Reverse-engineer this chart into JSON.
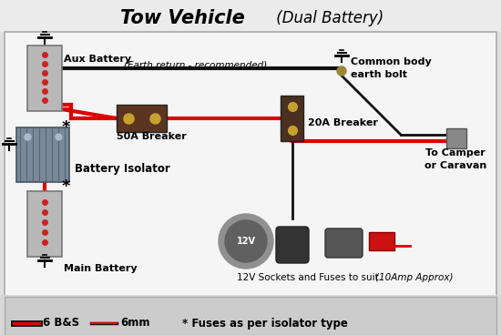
{
  "title": "Tow Vehicle",
  "title_italic": " (Dual Battery)",
  "bg_color": "#e0e0e0",
  "inner_bg": "#f0f0f0",
  "border_color": "#aaaaaa",
  "aux_battery_label": "Aux Battery",
  "main_battery_label": "Main Battery",
  "isolator_label": "Battery Isolator",
  "breaker50_label": "50A Breaker",
  "breaker20_label": "20A Breaker",
  "earth_label": "(Earth return - recommended)",
  "common_earth_label": "Common body\nearth bolt",
  "camper_label": "To Camper\nor Caravan",
  "socket_label": "12V Sockets and Fuses to suit.",
  "socket_label2": "(10Amp Approx)",
  "legend_6bs": "6 B&S",
  "legend_6mm": "6mm",
  "legend_fuse": "* Fuses as per isolator type",
  "red_wire": "#dd0000",
  "black_wire": "#111111",
  "battery_gray": "#b0b0b0",
  "isolator_blue": "#7a8a9a",
  "breaker50_color": "#5c3520",
  "breaker20_color": "#4a3020",
  "terminal_gold": "#c8a030",
  "connector_gray": "#888888"
}
